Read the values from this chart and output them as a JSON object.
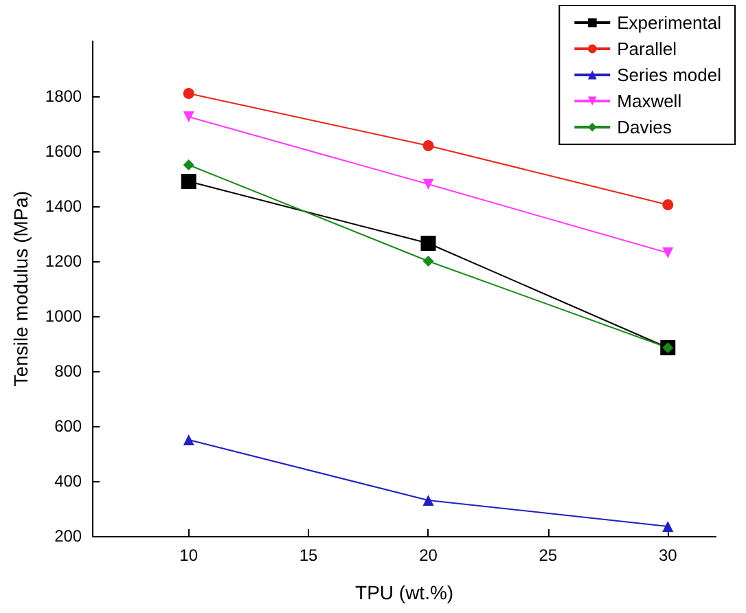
{
  "chart_data": {
    "type": "line",
    "xlabel": "TPU (wt.%)",
    "ylabel": "Tensile modulus (MPa)",
    "x": [
      10,
      20,
      30
    ],
    "series": [
      {
        "name": "Experimental",
        "color": "#000000",
        "marker": "square",
        "values": [
          1490,
          1265,
          885
        ]
      },
      {
        "name": "Parallel",
        "color": "#e8261b",
        "marker": "circle",
        "values": [
          1810,
          1620,
          1405
        ]
      },
      {
        "name": "Series model",
        "color": "#2020c0",
        "marker": "triangle",
        "values": [
          550,
          330,
          235
        ]
      },
      {
        "name": "Maxwell",
        "color": "#ff3cff",
        "marker": "triangle-down",
        "values": [
          1725,
          1480,
          1230
        ]
      },
      {
        "name": "Davies",
        "color": "#1a8a1a",
        "marker": "diamond",
        "values": [
          1550,
          1200,
          885
        ]
      }
    ],
    "xlim": [
      6,
      32
    ],
    "xticks": [
      10,
      15,
      20,
      25,
      30
    ],
    "ylim": [
      200,
      2000
    ],
    "yticks": [
      200,
      400,
      600,
      800,
      1000,
      1200,
      1400,
      1600,
      1800
    ],
    "grid": false,
    "legend": "top right",
    "line_style": "solid"
  }
}
